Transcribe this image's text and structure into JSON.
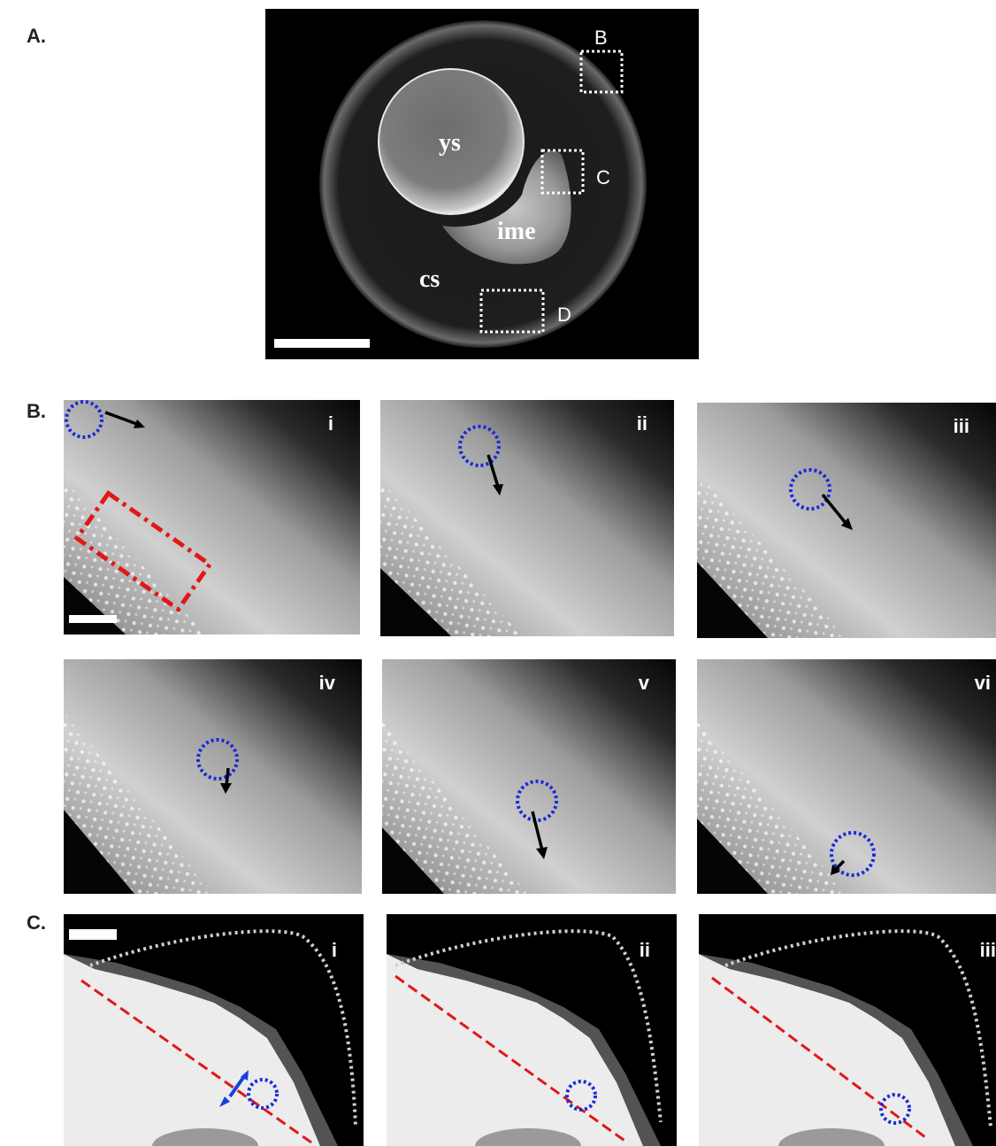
{
  "figure": {
    "panel_a": {
      "label": "A.",
      "regions": {
        "ys": "ys",
        "ime": "ime",
        "cs": "cs"
      },
      "box_labels": {
        "b": "B",
        "c": "C",
        "d": "D"
      }
    },
    "panel_b": {
      "label": "B.",
      "frames": [
        "i",
        "ii",
        "iii",
        "iv",
        "v",
        "vi"
      ]
    },
    "panel_c": {
      "label": "C.",
      "frames": [
        "i",
        "ii",
        "iii"
      ]
    },
    "colors": {
      "tracking_circle": "#1a2bd6",
      "region_box": "#e01818",
      "boundary_line": "#e01818",
      "outline_dots": "#cfcfcf",
      "motion_arrow": "#000000",
      "blue_arrow": "#1a3fe0"
    }
  }
}
